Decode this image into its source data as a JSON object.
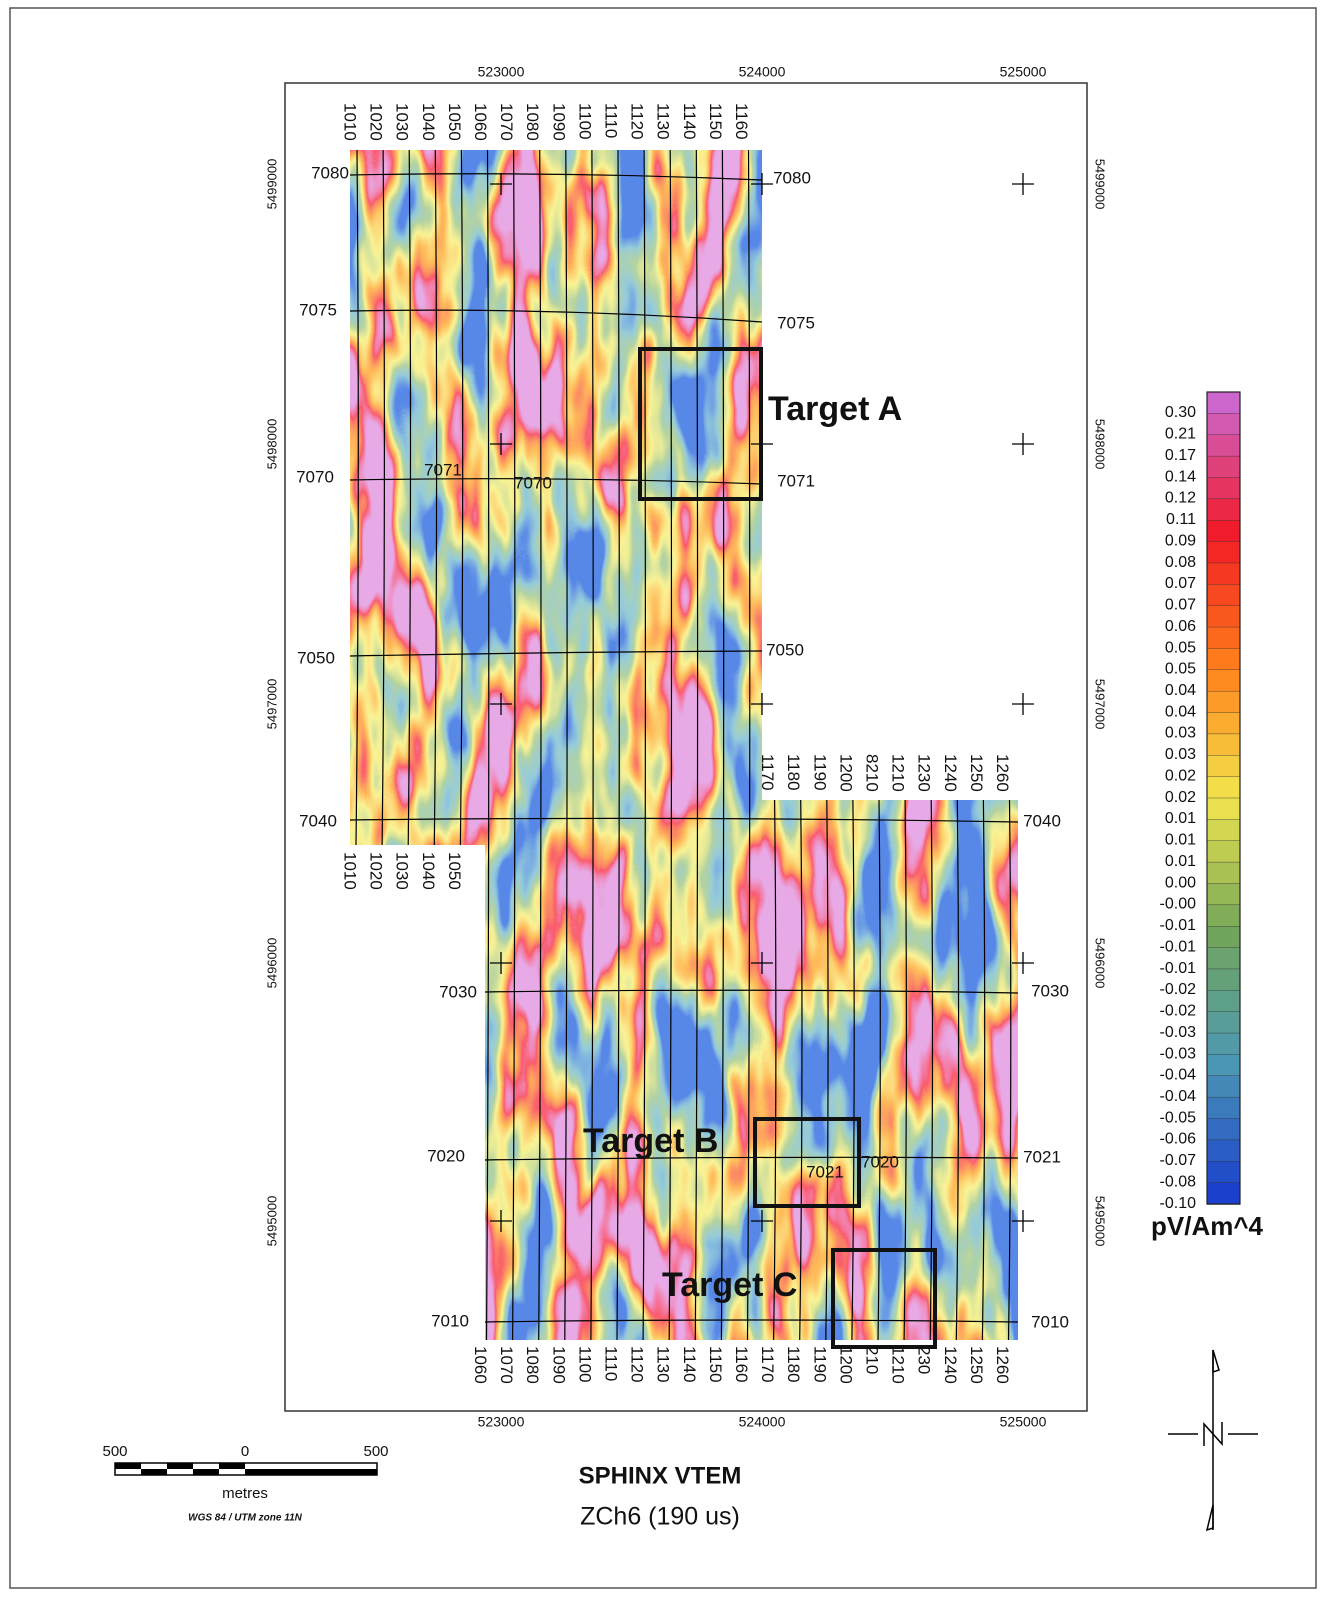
{
  "map": {
    "title": "SPHINX VTEM",
    "subtitle": "ZCh6 (190 us)",
    "easting_top": [
      "523000",
      "524000",
      "525000"
    ],
    "easting_bottom": [
      "523000",
      "524000",
      "525000"
    ],
    "northing_left": [
      "5499000",
      "5498000",
      "5497000",
      "5496000",
      "5495000"
    ],
    "northing_right": [
      "5499000",
      "5498000",
      "5497000",
      "5496000",
      "5495000"
    ],
    "lines_top": [
      "1010",
      "1020",
      "1030",
      "1040",
      "1050",
      "1060",
      "1070",
      "1080",
      "1090",
      "1100",
      "1110",
      "1120",
      "1130",
      "1140",
      "1150",
      "1160"
    ],
    "lines_middle_left": [
      "1010",
      "1020",
      "1030",
      "1040",
      "1050"
    ],
    "lines_middle_right": [
      "1170",
      "1180",
      "1190",
      "1200",
      "8210",
      "1210",
      "1230",
      "1240",
      "1250",
      "1260"
    ],
    "lines_bottom": [
      "1060",
      "1070",
      "1080",
      "1090",
      "1100",
      "1110",
      "1120",
      "1130",
      "1140",
      "1150",
      "1160",
      "1170",
      "1180",
      "1190",
      "1200",
      "210",
      "1210",
      "230",
      "1240",
      "1250",
      "1260"
    ],
    "tie_labels": [
      "7080",
      "7080",
      "7075",
      "7075",
      "7070",
      "7071",
      "7070",
      "7071",
      "7050",
      "7050",
      "7040",
      "7040",
      "7030",
      "7030",
      "7020",
      "7021",
      "7020",
      "7021",
      "7010",
      "7010"
    ],
    "targets": [
      "Target A",
      "Target B",
      "Target C"
    ],
    "legend": {
      "values": [
        "0.30",
        "0.21",
        "0.17",
        "0.14",
        "0.12",
        "0.11",
        "0.09",
        "0.08",
        "0.07",
        "0.07",
        "0.06",
        "0.05",
        "0.05",
        "0.04",
        "0.04",
        "0.03",
        "0.03",
        "0.02",
        "0.02",
        "0.01",
        "0.01",
        "0.01",
        "0.00",
        "-0.00",
        "-0.01",
        "-0.01",
        "-0.01",
        "-0.02",
        "-0.02",
        "-0.03",
        "-0.03",
        "-0.04",
        "-0.04",
        "-0.05",
        "-0.06",
        "-0.07",
        "-0.08",
        "-0.10"
      ],
      "unit": "pV/Am^4"
    },
    "scale_bar": {
      "left": "500",
      "center": "0",
      "right": "500",
      "unit": "metres",
      "projection": "WGS 84 / UTM zone 11N"
    }
  }
}
